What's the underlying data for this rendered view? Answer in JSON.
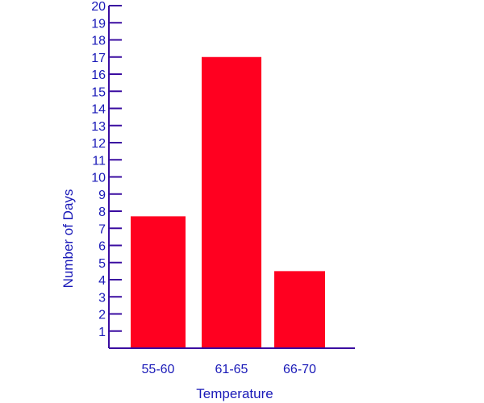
{
  "chart_data": {
    "type": "bar",
    "title": "",
    "xlabel": "Temperature",
    "ylabel": "Number of Days",
    "categories": [
      "55-60",
      "61-65",
      "66-70"
    ],
    "values": [
      7.7,
      17,
      4.5
    ],
    "ylim": [
      0,
      20
    ],
    "y_ticks": [
      1,
      2,
      3,
      4,
      5,
      6,
      7,
      8,
      9,
      10,
      11,
      12,
      13,
      14,
      15,
      16,
      17,
      18,
      19,
      20
    ],
    "grid": false,
    "legend": "none",
    "colors": {
      "bar": "#ff0020",
      "axis": "#3a0ca0",
      "text": "#1a1ab8"
    }
  }
}
